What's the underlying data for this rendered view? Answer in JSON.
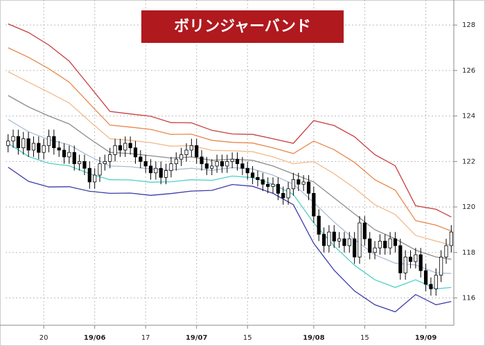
{
  "chart_data": {
    "type": "candlestick",
    "title": "ボリンジャーバンド",
    "categories": [
      null,
      null,
      null,
      null,
      null,
      null,
      null,
      "20",
      null,
      null,
      null,
      null,
      null,
      null,
      null,
      null,
      null,
      "19/06",
      null,
      null,
      null,
      null,
      null,
      null,
      null,
      null,
      null,
      "17",
      null,
      null,
      null,
      null,
      null,
      null,
      null,
      null,
      null,
      "19/07",
      null,
      null,
      null,
      null,
      null,
      null,
      null,
      null,
      null,
      "15",
      null,
      null,
      null,
      null,
      null,
      null,
      null,
      null,
      null,
      null,
      null,
      null,
      "19/08",
      null,
      null,
      null,
      null,
      null,
      null,
      null,
      null,
      null,
      "15",
      null,
      null,
      null,
      null,
      null,
      null,
      null,
      null,
      null,
      null,
      null,
      "19/09",
      null,
      null,
      null,
      null,
      null
    ],
    "candles": {
      "open": [
        122.7,
        122.9,
        123.1,
        122.6,
        123.0,
        122.5,
        122.8,
        122.4,
        122.7,
        123.1,
        122.6,
        122.5,
        122.2,
        122.4,
        121.9,
        122.0,
        121.7,
        121.1,
        121.4,
        121.9,
        122.0,
        122.3,
        122.7,
        122.5,
        122.8,
        122.6,
        122.2,
        122.0,
        121.8,
        121.5,
        121.7,
        121.3,
        121.6,
        121.9,
        122.1,
        122.3,
        122.5,
        122.7,
        122.2,
        121.9,
        121.7,
        121.8,
        122.0,
        121.8,
        122.0,
        122.1,
        121.9,
        121.7,
        121.5,
        121.3,
        121.2,
        121.0,
        120.9,
        121.0,
        120.6,
        120.4,
        120.8,
        121.2,
        121.0,
        121.1,
        120.6,
        119.6,
        118.8,
        118.3,
        118.9,
        118.5,
        118.6,
        118.3,
        118.6,
        117.8,
        119.3,
        118.6,
        118.0,
        118.2,
        118.5,
        118.2,
        118.6,
        118.3,
        117.1,
        117.8,
        117.6,
        117.9,
        117.2,
        116.6,
        116.4,
        117.0,
        117.8,
        118.3
      ],
      "high": [
        123.2,
        123.4,
        123.4,
        123.3,
        123.3,
        123.1,
        123.1,
        123.0,
        123.4,
        123.4,
        122.9,
        122.8,
        122.7,
        122.7,
        122.3,
        122.3,
        122.0,
        121.7,
        122.2,
        122.3,
        122.6,
        123.0,
        123.0,
        123.1,
        123.1,
        122.9,
        122.5,
        122.3,
        122.1,
        122.0,
        122.0,
        121.9,
        122.2,
        122.4,
        122.6,
        122.8,
        123.0,
        123.0,
        122.5,
        122.2,
        122.1,
        122.3,
        122.3,
        122.3,
        122.4,
        122.4,
        122.2,
        122.0,
        121.8,
        121.6,
        121.5,
        121.3,
        121.3,
        121.3,
        120.9,
        121.1,
        121.5,
        121.5,
        121.4,
        121.4,
        120.9,
        119.9,
        119.1,
        119.2,
        119.2,
        118.9,
        118.9,
        118.9,
        118.9,
        119.6,
        119.6,
        118.9,
        118.5,
        118.8,
        118.8,
        118.9,
        118.9,
        118.6,
        118.1,
        118.1,
        118.2,
        118.2,
        117.5,
        116.9,
        117.3,
        118.1,
        118.6,
        119.2
      ],
      "low": [
        122.4,
        122.6,
        122.3,
        122.3,
        122.2,
        122.2,
        122.1,
        122.1,
        122.4,
        122.3,
        122.2,
        121.9,
        121.9,
        121.6,
        121.6,
        121.4,
        120.8,
        120.8,
        121.1,
        121.6,
        121.7,
        122.0,
        122.2,
        122.2,
        122.3,
        121.9,
        121.7,
        121.5,
        121.2,
        121.2,
        121.0,
        121.0,
        121.3,
        121.6,
        121.8,
        122.0,
        122.2,
        121.9,
        121.6,
        121.4,
        121.4,
        121.5,
        121.5,
        121.5,
        121.7,
        121.6,
        121.4,
        121.2,
        121.0,
        120.9,
        120.7,
        120.6,
        120.6,
        120.3,
        120.1,
        120.1,
        120.5,
        120.7,
        120.7,
        120.3,
        119.3,
        118.5,
        118.0,
        118.0,
        118.2,
        118.2,
        118.0,
        118.0,
        117.5,
        117.5,
        118.3,
        117.7,
        117.7,
        117.9,
        117.9,
        117.9,
        118.0,
        116.8,
        116.8,
        117.3,
        117.3,
        116.9,
        116.3,
        116.1,
        116.1,
        116.7,
        117.5,
        118.0
      ],
      "close": [
        122.9,
        123.1,
        122.6,
        123.0,
        122.5,
        122.8,
        122.4,
        122.7,
        123.1,
        122.6,
        122.5,
        122.2,
        122.4,
        121.9,
        122.0,
        121.7,
        121.1,
        121.4,
        121.9,
        122.0,
        122.3,
        122.7,
        122.5,
        122.8,
        122.6,
        122.2,
        122.0,
        121.8,
        121.5,
        121.7,
        121.3,
        121.6,
        121.9,
        122.1,
        122.3,
        122.5,
        122.7,
        122.2,
        121.9,
        121.7,
        121.8,
        122.0,
        121.8,
        122.0,
        122.1,
        121.9,
        121.7,
        121.5,
        121.3,
        121.2,
        121.0,
        120.9,
        121.0,
        120.6,
        120.4,
        120.8,
        121.2,
        121.0,
        121.1,
        120.6,
        119.6,
        118.8,
        118.3,
        118.9,
        118.5,
        118.6,
        118.3,
        118.6,
        117.8,
        119.3,
        118.6,
        118.0,
        118.2,
        118.5,
        118.2,
        118.6,
        118.3,
        117.1,
        117.8,
        117.6,
        117.9,
        117.2,
        116.6,
        116.4,
        117.0,
        117.8,
        118.3,
        118.9
      ]
    },
    "x": [
      0,
      4,
      8,
      12,
      16,
      20,
      24,
      28,
      32,
      36,
      40,
      44,
      48,
      52,
      56,
      60,
      64,
      68,
      72,
      76,
      80,
      84,
      87
    ],
    "series": [
      {
        "color": "#c83c3c",
        "values": [
          128.05,
          127.67,
          127.12,
          126.41,
          125.31,
          124.2,
          124.09,
          123.99,
          123.71,
          123.7,
          123.37,
          123.21,
          123.19,
          123.0,
          122.8,
          123.8,
          123.58,
          123.09,
          122.3,
          121.81,
          120.05,
          119.9,
          119.56
        ]
      },
      {
        "color": "#e8864a",
        "values": [
          127.0,
          126.58,
          126.08,
          125.49,
          124.54,
          123.6,
          123.51,
          123.41,
          123.19,
          123.2,
          122.93,
          122.84,
          122.81,
          122.6,
          122.35,
          122.9,
          122.52,
          121.96,
          121.2,
          120.74,
          119.4,
          119.2,
          118.94
        ]
      },
      {
        "color": "#f2b98a",
        "values": [
          125.95,
          125.49,
          125.04,
          124.57,
          123.77,
          123.0,
          122.93,
          122.83,
          122.67,
          122.7,
          122.49,
          122.47,
          122.43,
          122.2,
          121.9,
          122.0,
          121.46,
          120.83,
          120.1,
          119.67,
          118.75,
          118.5,
          118.32
        ]
      },
      {
        "color": "#8c8c8c",
        "values": [
          124.9,
          124.4,
          124.0,
          123.65,
          123.0,
          122.4,
          122.35,
          122.25,
          122.15,
          122.2,
          122.05,
          122.1,
          122.05,
          121.8,
          121.45,
          121.1,
          120.4,
          119.7,
          119.0,
          118.6,
          118.1,
          117.8,
          117.7
        ]
      },
      {
        "color": "#a9bcd4",
        "values": [
          123.85,
          123.31,
          122.96,
          122.73,
          122.23,
          121.8,
          121.77,
          121.67,
          121.63,
          121.7,
          121.61,
          121.73,
          121.67,
          121.4,
          121.0,
          120.2,
          119.34,
          118.57,
          117.9,
          117.53,
          117.45,
          117.1,
          117.08
        ]
      },
      {
        "color": "#4fd0c4",
        "values": [
          122.8,
          122.22,
          121.92,
          121.81,
          121.46,
          121.2,
          121.19,
          121.09,
          121.11,
          121.2,
          121.17,
          121.36,
          121.29,
          121.0,
          120.55,
          119.3,
          118.28,
          117.44,
          116.8,
          116.46,
          116.8,
          116.4,
          116.46
        ]
      },
      {
        "color": "#3a3aa8",
        "values": [
          121.75,
          121.13,
          120.88,
          120.89,
          120.69,
          120.6,
          120.61,
          120.51,
          120.59,
          120.7,
          120.73,
          120.99,
          120.91,
          120.6,
          120.1,
          118.4,
          117.22,
          116.31,
          115.7,
          115.39,
          116.15,
          115.7,
          115.84
        ]
      }
    ],
    "ylim": [
      114.8,
      129.1
    ],
    "yticks": [
      116,
      118,
      120,
      122,
      124,
      126,
      128
    ],
    "up_color": "#ffffff",
    "down_color": "#000000",
    "title_color": "#b0191e",
    "grid": true
  }
}
